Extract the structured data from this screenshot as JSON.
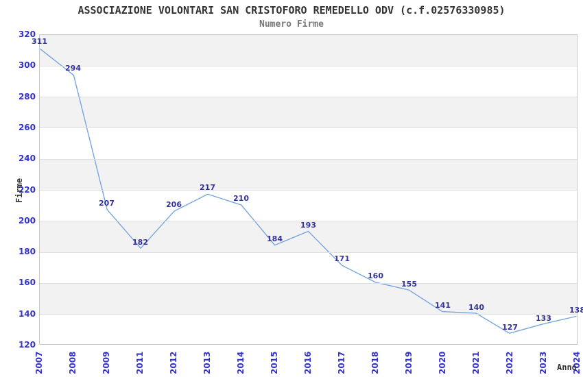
{
  "chart_data": {
    "type": "line",
    "title": "ASSOCIAZIONE VOLONTARI SAN CRISTOFORO REMEDELLO ODV (c.f.02576330985)",
    "subtitle": "Numero Firme",
    "xlabel": "Anno",
    "ylabel": "Firme",
    "categories": [
      "2007",
      "2008",
      "2009",
      "2011",
      "2012",
      "2013",
      "2014",
      "2015",
      "2016",
      "2017",
      "2018",
      "2019",
      "2020",
      "2021",
      "2022",
      "2023",
      "2024"
    ],
    "series": [
      {
        "name": "Numero Firme",
        "values": [
          311,
          294,
          207,
          182,
          206,
          217,
          210,
          184,
          193,
          171,
          160,
          155,
          141,
          140,
          127,
          133,
          138
        ]
      }
    ],
    "ylim": [
      120,
      320
    ],
    "yticks": [
      120,
      140,
      160,
      180,
      200,
      220,
      240,
      260,
      280,
      300,
      320
    ],
    "grid": "horizontal-bands-alternating",
    "legend": "none",
    "data_labels_shown": true,
    "colors": {
      "line": "#76a5e0",
      "data_label": "#333399",
      "tick_label": "#3333cc",
      "band": "#f2f2f2",
      "band_alt": "#ffffff",
      "gridline": "#e0e0e0",
      "plot_border": "#c8c8c8",
      "title": "#333333",
      "subtitle": "#777777",
      "axis_title": "#333333",
      "background": "#ffffff"
    }
  }
}
